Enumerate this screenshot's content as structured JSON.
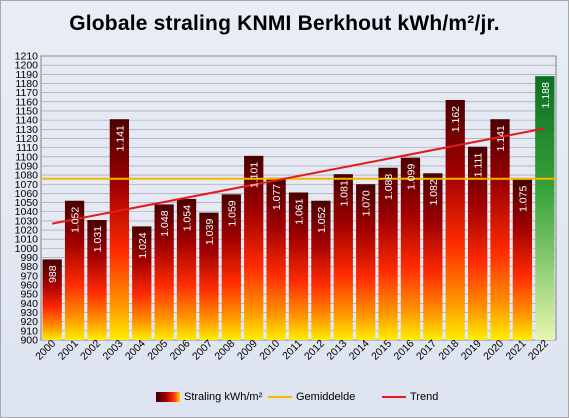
{
  "title": "Globale straling KNMI Berkhout kWh/m²/jr.",
  "colors": {
    "average_line": "#f5b800",
    "trend_line": "#e21b1b",
    "last_bar_top": "#0c6e22",
    "last_bar_bottom": "#e6f6b0",
    "bar_top": "#4a0000",
    "bar_bottom": "#ffee00",
    "grid": "#9a9a9a",
    "label_color": "#ffffff"
  },
  "legend": {
    "series_label": "Straling kWh/m²",
    "average_label": "Gemiddelde",
    "trend_label": "Trend"
  },
  "chart_data": {
    "type": "bar",
    "title": "Globale straling KNMI Berkhout kWh/m²/jr.",
    "xlabel": "",
    "ylabel": "",
    "ylim": [
      900,
      1210
    ],
    "ytick_step": 10,
    "grid": true,
    "legend_position": "bottom",
    "categories": [
      "2000",
      "2001",
      "2002",
      "2003",
      "2004",
      "2005",
      "2006",
      "2007",
      "2008",
      "2009",
      "2010",
      "2011",
      "2012",
      "2013",
      "2014",
      "2015",
      "2016",
      "2017",
      "2018",
      "2019",
      "2020",
      "2021",
      "2022"
    ],
    "series": [
      {
        "name": "Straling kWh/m²",
        "values": [
          988,
          1052,
          1031,
          1141,
          1024,
          1048,
          1054,
          1039,
          1059,
          1101,
          1077,
          1061,
          1052,
          1081,
          1070,
          1088,
          1099,
          1082,
          1162,
          1111,
          1141,
          1075,
          1188
        ],
        "labels": [
          "988",
          "1.052",
          "1.031",
          "1.141",
          "1.024",
          "1.048",
          "1.054",
          "1.039",
          "1.059",
          "1.101",
          "1.077",
          "1.061",
          "1.052",
          "1.081",
          "1.070",
          "1.088",
          "1.099",
          "1.082",
          "1.162",
          "1.111",
          "1.141",
          "1.075",
          "1.188"
        ]
      }
    ],
    "average": {
      "name": "Gemiddelde",
      "value": 1076
    },
    "trend": {
      "name": "Trend",
      "start": 1027,
      "end": 1131
    }
  }
}
